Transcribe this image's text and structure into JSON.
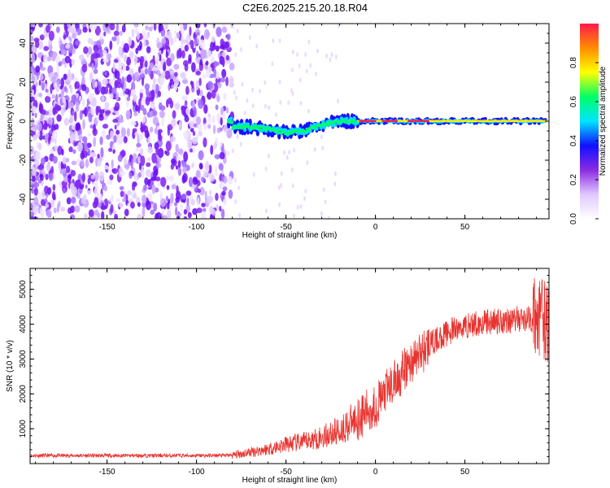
{
  "page_title": "C2E6.2025.215.20.18.R04",
  "chart_data": [
    {
      "type": "heatmap",
      "title": "C2E6.2025.215.20.18.R04",
      "xlabel": "Height of straight line (km)",
      "ylabel": "Frequency (Hz)",
      "xlim": [
        -193,
        97
      ],
      "ylim": [
        -50,
        50
      ],
      "x_ticks": [
        -150,
        -100,
        -50,
        0,
        50
      ],
      "y_ticks": [
        -40,
        -20,
        0,
        20,
        40
      ],
      "colorbar": {
        "label": "Normalized spectral amplitude",
        "range": [
          0,
          1
        ],
        "ticks": [
          "0.0",
          "0.2",
          "0.4",
          "0.6",
          "0.8"
        ],
        "colors": [
          "#ffffff",
          "#e0c8ff",
          "#8a2be2",
          "#1010ff",
          "#00e5ff",
          "#00ff66",
          "#ffff00",
          "#ff8c00",
          "#ff1a4a"
        ]
      },
      "noise_region_x": [
        -193,
        -80
      ],
      "signal_center_frequency": [
        {
          "x": -80,
          "y": -3
        },
        {
          "x": -70,
          "y": -3
        },
        {
          "x": -60,
          "y": -4
        },
        {
          "x": -50,
          "y": -6
        },
        {
          "x": -40,
          "y": -5
        },
        {
          "x": -30,
          "y": -2
        },
        {
          "x": -20,
          "y": 0
        },
        {
          "x": -10,
          "y": 0
        },
        {
          "x": 0,
          "y": 0
        },
        {
          "x": 25,
          "y": 0
        },
        {
          "x": 50,
          "y": 0
        },
        {
          "x": 75,
          "y": 0
        },
        {
          "x": 95,
          "y": 0
        }
      ]
    },
    {
      "type": "line",
      "xlabel": "Height of straight line (km)",
      "ylabel": "SNR (10 * v/v)",
      "xlim": [
        -193,
        97
      ],
      "ylim": [
        0,
        5600
      ],
      "x_ticks": [
        -150,
        -100,
        -50,
        0,
        50
      ],
      "y_ticks": [
        1000,
        2000,
        3000,
        4000,
        5000
      ],
      "color": "#e8332f",
      "series": [
        {
          "x": [
            -193,
            -180,
            -160,
            -140,
            -120,
            -100,
            -90,
            -80,
            -75,
            -70,
            -60,
            -50,
            -40,
            -30,
            -20,
            -10,
            0,
            5,
            10,
            20,
            30,
            40,
            50,
            60,
            70,
            80,
            88,
            92,
            95,
            97
          ],
          "y": [
            230,
            230,
            230,
            230,
            230,
            230,
            230,
            240,
            280,
            330,
            420,
            550,
            620,
            760,
            950,
            1300,
            1650,
            2000,
            2300,
            2900,
            3400,
            3750,
            3950,
            4050,
            4100,
            4150,
            4150,
            4200,
            4100,
            4000
          ]
        }
      ]
    }
  ]
}
